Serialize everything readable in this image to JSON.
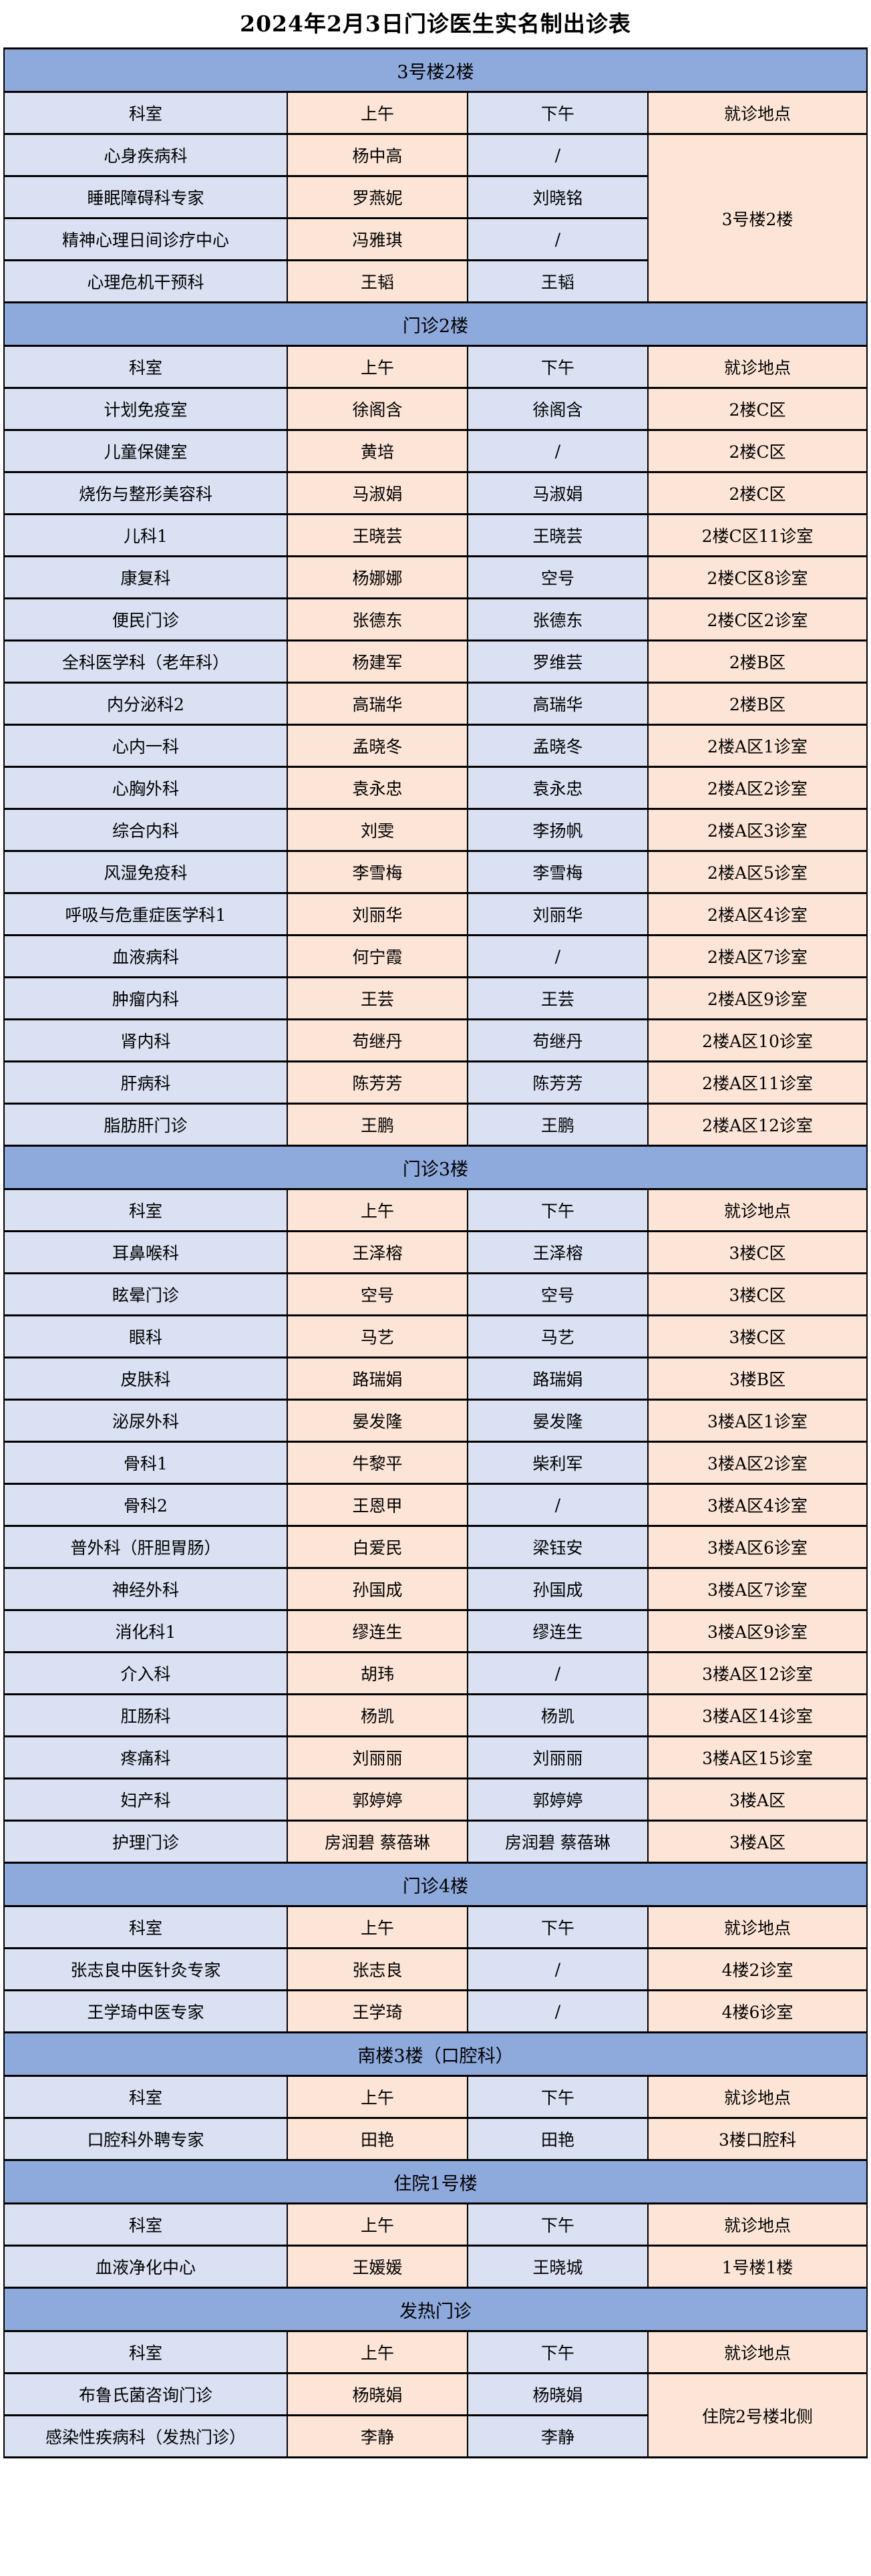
{
  "title": "2024年2月3日门诊医生实名制出诊表",
  "columns": [
    "科室",
    "上午",
    "下午",
    "就诊地点"
  ],
  "colors": {
    "section_header_blue": "#8EA9DB",
    "cell_light_blue": "#D9E1F2",
    "cell_peach": "#FCE4D6",
    "border": "#000000",
    "text": "#000000"
  },
  "sections": [
    {
      "name": "3号楼2楼",
      "rows": [
        {
          "dept": "心身疾病科",
          "am": "杨中高",
          "pm": "/",
          "location": "3号楼2楼",
          "loc_rowspan": 4
        },
        {
          "dept": "睡眠障碍科专家",
          "am": "罗燕妮",
          "pm": "刘晓铭",
          "location": null
        },
        {
          "dept": "精神心理日间诊疗中心",
          "am": "冯雅琪",
          "pm": "/",
          "location": null
        },
        {
          "dept": "心理危机干预科",
          "am": "王韬",
          "pm": "王韬",
          "location": null
        }
      ]
    },
    {
      "name": "门诊2楼",
      "rows": [
        {
          "dept": "计划免疫室",
          "am": "徐阁含",
          "pm": "徐阁含",
          "location": "2楼C区"
        },
        {
          "dept": "儿童保健室",
          "am": "黄培",
          "pm": "/",
          "location": "2楼C区"
        },
        {
          "dept": "烧伤与整形美容科",
          "am": "马淑娟",
          "pm": "马淑娟",
          "location": "2楼C区"
        },
        {
          "dept": "儿科1",
          "am": "王晓芸",
          "pm": "王晓芸",
          "location": "2楼C区11诊室"
        },
        {
          "dept": "康复科",
          "am": "杨娜娜",
          "pm": "空号",
          "location": "2楼C区8诊室"
        },
        {
          "dept": "便民门诊",
          "am": "张德东",
          "pm": "张德东",
          "location": "2楼C区2诊室"
        },
        {
          "dept": "全科医学科（老年科）",
          "am": "杨建军",
          "pm": "罗维芸",
          "location": "2楼B区"
        },
        {
          "dept": "内分泌科2",
          "am": "高瑞华",
          "pm": "高瑞华",
          "location": "2楼B区"
        },
        {
          "dept": "心内一科",
          "am": "孟晓冬",
          "pm": "孟晓冬",
          "location": "2楼A区1诊室"
        },
        {
          "dept": "心胸外科",
          "am": "袁永忠",
          "pm": "袁永忠",
          "location": "2楼A区2诊室"
        },
        {
          "dept": "综合内科",
          "am": "刘雯",
          "pm": "李扬帆",
          "location": "2楼A区3诊室"
        },
        {
          "dept": "风湿免疫科",
          "am": "李雪梅",
          "pm": "李雪梅",
          "location": "2楼A区5诊室"
        },
        {
          "dept": "呼吸与危重症医学科1",
          "am": "刘丽华",
          "pm": "刘丽华",
          "location": "2楼A区4诊室"
        },
        {
          "dept": "血液病科",
          "am": "何宁霞",
          "pm": "/",
          "location": "2楼A区7诊室"
        },
        {
          "dept": "肿瘤内科",
          "am": "王芸",
          "pm": "王芸",
          "location": "2楼A区9诊室"
        },
        {
          "dept": "肾内科",
          "am": "苟继丹",
          "pm": "苟继丹",
          "location": "2楼A区10诊室"
        },
        {
          "dept": "肝病科",
          "am": "陈芳芳",
          "pm": "陈芳芳",
          "location": "2楼A区11诊室"
        },
        {
          "dept": "脂肪肝门诊",
          "am": "王鹏",
          "pm": "王鹏",
          "location": "2楼A区12诊室"
        }
      ]
    },
    {
      "name": "门诊3楼",
      "rows": [
        {
          "dept": "耳鼻喉科",
          "am": "王泽榕",
          "pm": "王泽榕",
          "location": "3楼C区"
        },
        {
          "dept": "眩晕门诊",
          "am": "空号",
          "pm": "空号",
          "location": "3楼C区"
        },
        {
          "dept": "眼科",
          "am": "马艺",
          "pm": "马艺",
          "location": "3楼C区"
        },
        {
          "dept": "皮肤科",
          "am": "路瑞娟",
          "pm": "路瑞娟",
          "location": "3楼B区"
        },
        {
          "dept": "泌尿外科",
          "am": "晏发隆",
          "pm": "晏发隆",
          "location": "3楼A区1诊室"
        },
        {
          "dept": "骨科1",
          "am": "牛黎平",
          "pm": "柴利军",
          "location": "3楼A区2诊室"
        },
        {
          "dept": "骨科2",
          "am": "王恩甲",
          "pm": "/",
          "location": "3楼A区4诊室"
        },
        {
          "dept": "普外科（肝胆胃肠）",
          "am": "白爱民",
          "pm": "梁钰安",
          "location": "3楼A区6诊室"
        },
        {
          "dept": "神经外科",
          "am": "孙国成",
          "pm": "孙国成",
          "location": "3楼A区7诊室"
        },
        {
          "dept": "消化科1",
          "am": "缪连生",
          "pm": "缪连生",
          "location": "3楼A区9诊室"
        },
        {
          "dept": "介入科",
          "am": "胡玮",
          "pm": "/",
          "location": "3楼A区12诊室"
        },
        {
          "dept": "肛肠科",
          "am": "杨凯",
          "pm": "杨凯",
          "location": "3楼A区14诊室"
        },
        {
          "dept": "疼痛科",
          "am": "刘丽丽",
          "pm": "刘丽丽",
          "location": "3楼A区15诊室"
        },
        {
          "dept": "妇产科",
          "am": "郭婷婷",
          "pm": "郭婷婷",
          "location": "3楼A区"
        },
        {
          "dept": "护理门诊",
          "am": "房润碧 蔡蓓琳",
          "pm": "房润碧 蔡蓓琳",
          "location": "3楼A区"
        }
      ]
    },
    {
      "name": "门诊4楼",
      "rows": [
        {
          "dept": "张志良中医针灸专家",
          "am": "张志良",
          "pm": "/",
          "location": "4楼2诊室"
        },
        {
          "dept": "王学琦中医专家",
          "am": "王学琦",
          "pm": "/",
          "location": "4楼6诊室"
        }
      ]
    },
    {
      "name": "南楼3楼（口腔科）",
      "rows": [
        {
          "dept": "口腔科外聘专家",
          "am": "田艳",
          "pm": "田艳",
          "location": "3楼口腔科"
        }
      ]
    },
    {
      "name": "住院1号楼",
      "rows": [
        {
          "dept": "血液净化中心",
          "am": "王媛媛",
          "pm": "王晓城",
          "location": "1号楼1楼"
        }
      ]
    },
    {
      "name": "发热门诊",
      "rows": [
        {
          "dept": "布鲁氏菌咨询门诊",
          "am": "杨晓娟",
          "pm": "杨晓娟",
          "location": "住院2号楼北侧",
          "loc_rowspan": 2
        },
        {
          "dept": "感染性疾病科（发热门诊）",
          "am": "李静",
          "pm": "李静",
          "location": null
        }
      ]
    }
  ]
}
